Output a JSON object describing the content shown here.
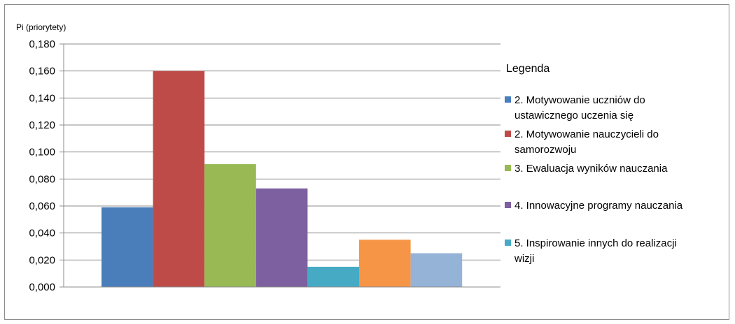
{
  "chart_data": {
    "type": "bar",
    "ylabel": "Pi (priorytety)",
    "ylim": [
      0,
      0.18
    ],
    "y_tick_step": 0.02,
    "y_ticks": [
      "0,000",
      "0,020",
      "0,040",
      "0,060",
      "0,080",
      "0,100",
      "0,120",
      "0,140",
      "0,160",
      "0,180"
    ],
    "grid": true,
    "legend_placement": "right",
    "legend_title": "Legenda",
    "series": [
      {
        "name": "2. Motywowanie uczniów do ustawicznego uczenia się",
        "value": 0.059,
        "color": "#4a7ebb",
        "in_legend": true
      },
      {
        "name": "2. Motywowanie nauczycieli do samorozwoju",
        "value": 0.16,
        "color": "#be4b48",
        "in_legend": true
      },
      {
        "name": "3. Ewaluacja wyników nauczania",
        "value": 0.091,
        "color": "#98b954",
        "in_legend": true
      },
      {
        "name": "4. Innowacyjne programy nauczania",
        "value": 0.073,
        "color": "#7d60a0",
        "in_legend": true
      },
      {
        "name": "5. Inspirowanie innych do realizacji wizji",
        "value": 0.015,
        "color": "#46aac5",
        "in_legend": true
      },
      {
        "name": "",
        "value": 0.035,
        "color": "#f69546",
        "in_legend": false
      },
      {
        "name": "",
        "value": 0.025,
        "color": "#95b3d7",
        "in_legend": false
      }
    ]
  }
}
